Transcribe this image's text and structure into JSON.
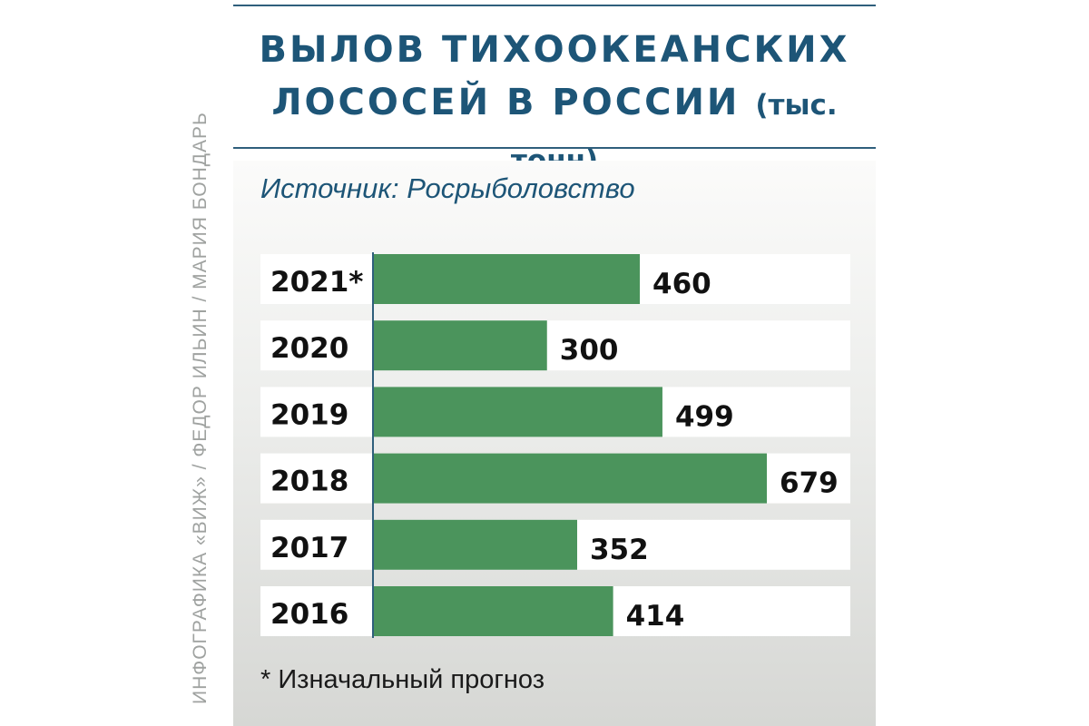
{
  "header": {
    "title_line1": "ВЫЛОВ ТИХООКЕАНСКИХ",
    "title_line2": "ЛОСОСЕЙ В РОССИИ",
    "title_unit": "(тыс. тонн)"
  },
  "source": "Источник: Росрыболовство",
  "footnote": "* Изначальный прогноз",
  "credit": "ИНФОГРАФИКА «ВИЖ» / ФЕДОР ИЛЬИН / МАРИЯ БОНДАРЬ",
  "colors": {
    "bar": "#4b945c",
    "title": "#1d5577",
    "row_background": "#ffffff"
  },
  "chart_data": {
    "type": "bar",
    "orientation": "horizontal",
    "title": "ВЫЛОВ ТИХООКЕАНСКИХ ЛОСОСЕЙ В РОССИИ (тыс. тонн)",
    "categories": [
      "2021*",
      "2020",
      "2019",
      "2018",
      "2017",
      "2016"
    ],
    "values": [
      460,
      300,
      499,
      679,
      352,
      414
    ],
    "xlim": [
      0,
      679
    ],
    "grid": false,
    "legend": "none"
  }
}
